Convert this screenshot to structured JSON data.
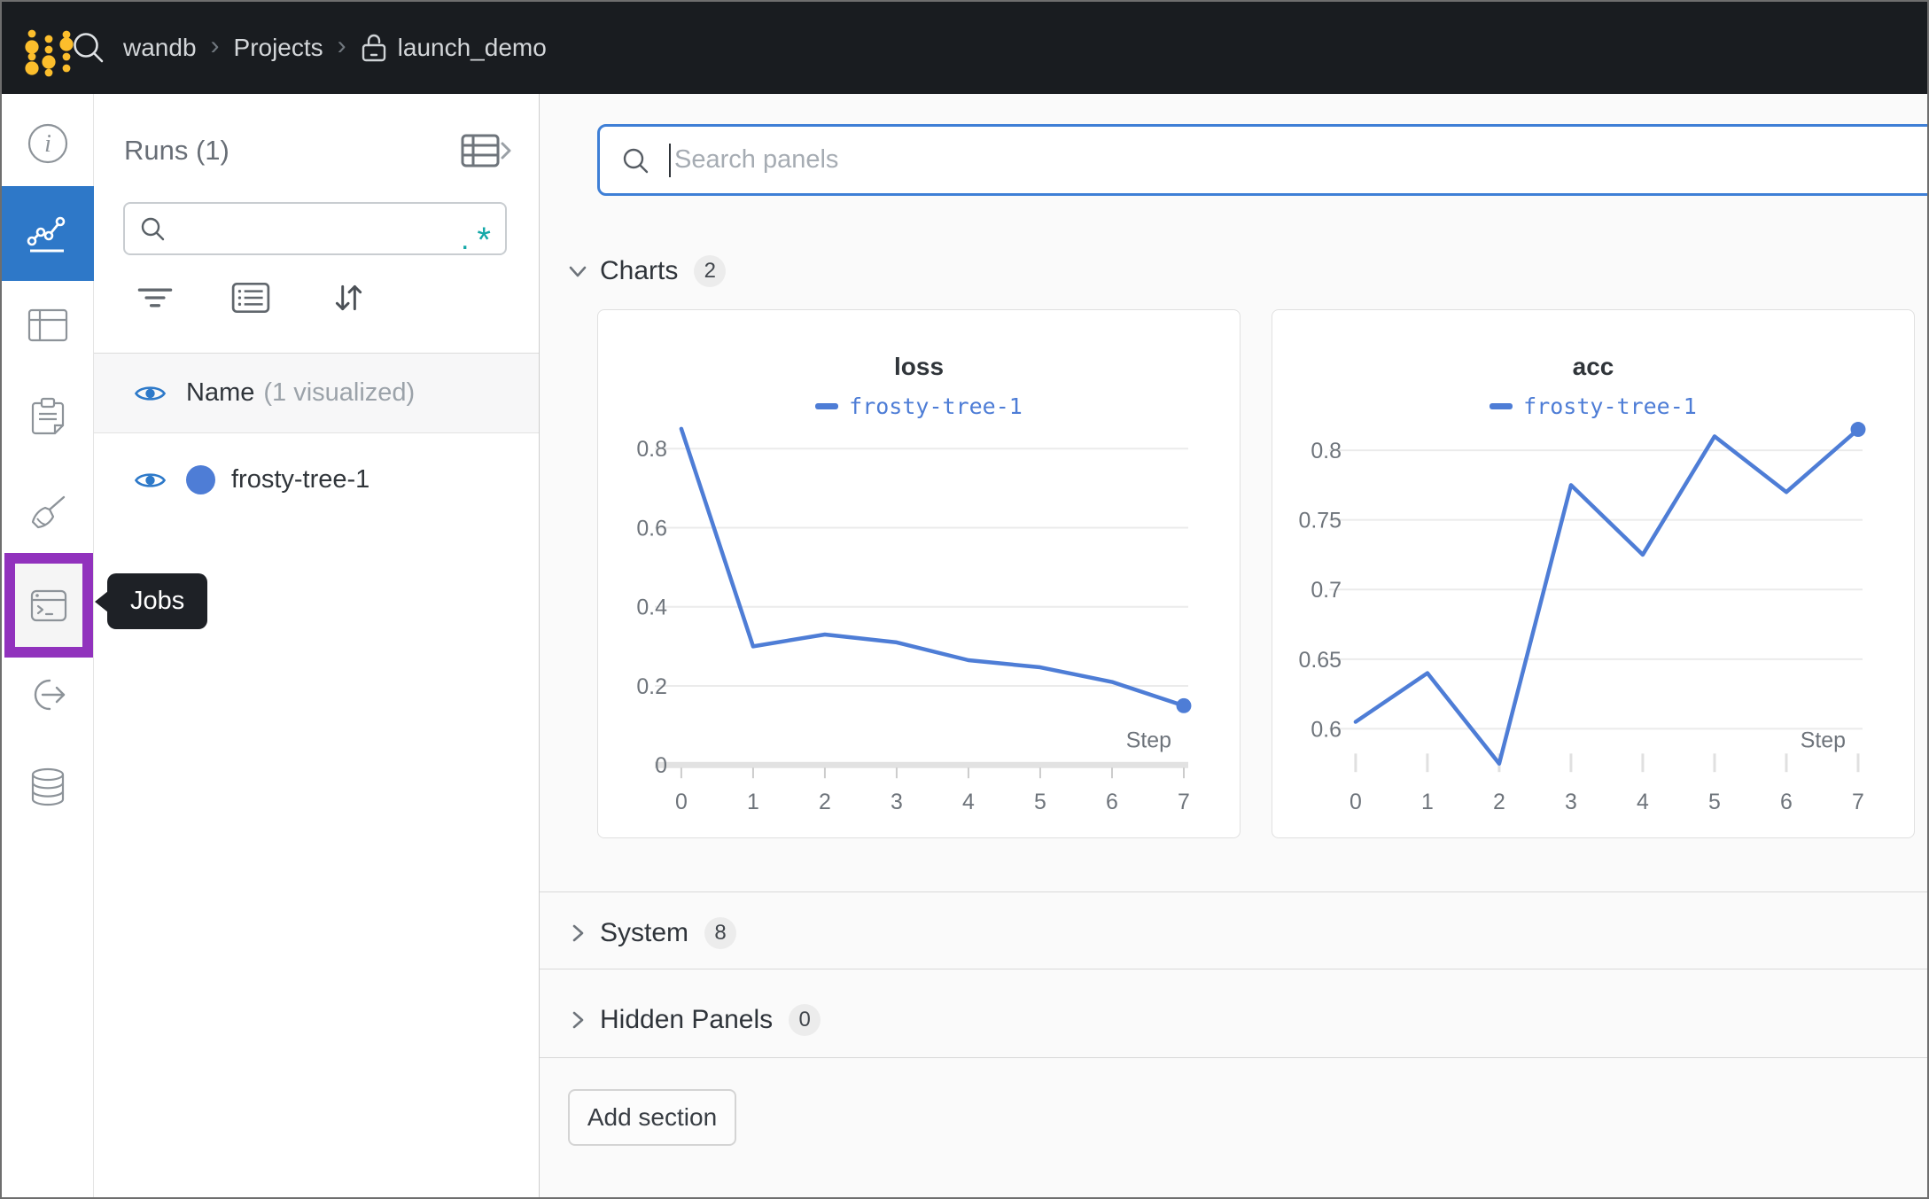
{
  "topbar": {
    "breadcrumb": {
      "items": [
        "wandb",
        "Projects",
        "launch_demo"
      ],
      "separator": "›"
    }
  },
  "sidebar": {
    "tooltip": "Jobs",
    "items": [
      {
        "id": "overview",
        "icon": "info-icon"
      },
      {
        "id": "workspace",
        "icon": "line-chart-icon",
        "active": true
      },
      {
        "id": "runs-table",
        "icon": "table-icon"
      },
      {
        "id": "reports",
        "icon": "clipboard-icon"
      },
      {
        "id": "sweeps",
        "icon": "broom-icon"
      },
      {
        "id": "jobs",
        "icon": "terminal-icon",
        "highlighted": true
      },
      {
        "id": "launch",
        "icon": "launch-arrow-icon"
      },
      {
        "id": "artifacts",
        "icon": "database-icon"
      }
    ]
  },
  "runs_panel": {
    "title": "Runs (1)",
    "search_value": "",
    "regex_icon": {
      "dot": ".",
      "star": "*",
      "color": "#13a8a8"
    },
    "table_header": {
      "name": "Name",
      "visualized": "(1 visualized)"
    },
    "runs": [
      {
        "name": "frosty-tree-1",
        "color": "#4e7dd6",
        "visible": true
      }
    ]
  },
  "main": {
    "search_placeholder": "Search panels",
    "sections": [
      {
        "label": "Charts",
        "count": "2",
        "expanded": true
      },
      {
        "label": "System",
        "count": "8",
        "expanded": false
      },
      {
        "label": "Hidden Panels",
        "count": "0",
        "expanded": false
      }
    ],
    "add_section_label": "Add section"
  },
  "chart_data": [
    {
      "type": "line",
      "title": "loss",
      "x": [
        0,
        1,
        2,
        3,
        4,
        5,
        6,
        7
      ],
      "xlabel": "Step",
      "series": [
        {
          "name": "frosty-tree-1",
          "color": "#4e7dd6",
          "values": [
            0.85,
            0.3,
            0.33,
            0.31,
            0.265,
            0.247,
            0.21,
            0.15
          ]
        }
      ],
      "ylim": [
        0,
        0.882
      ],
      "gridlines": [
        0.8,
        0.6,
        0.4,
        0.2
      ],
      "grid_labels": [
        "0.8",
        "0.6",
        "0.4",
        "0.2"
      ],
      "baseline_zero": true,
      "end_dot": true,
      "legend_position": "top"
    },
    {
      "type": "line",
      "title": "acc",
      "x": [
        0,
        1,
        2,
        3,
        4,
        5,
        6,
        7
      ],
      "xlabel": "Step",
      "series": [
        {
          "name": "frosty-tree-1",
          "color": "#4e7dd6",
          "values": [
            0.605,
            0.64,
            0.575,
            0.775,
            0.725,
            0.81,
            0.77,
            0.815
          ]
        }
      ],
      "ylim": [
        0.574,
        0.8245
      ],
      "gridlines": [
        0.8,
        0.75,
        0.7,
        0.65,
        0.6
      ],
      "grid_labels": [
        "0.8",
        "0.75",
        "0.7",
        "0.65",
        "0.6"
      ],
      "baseline_zero": false,
      "end_dot": true,
      "legend_position": "top"
    }
  ],
  "colors": {
    "topbar_bg": "#191c20",
    "logo_gold": "#fcbe2c",
    "sidebar_active_bg": "#2e78c8",
    "jobs_highlight": "#9132bd",
    "run_blue": "#4e7dd6",
    "regex_teal": "#13a8a8",
    "focus_border": "#3e7fd6",
    "main_bg": "#fafafa"
  }
}
